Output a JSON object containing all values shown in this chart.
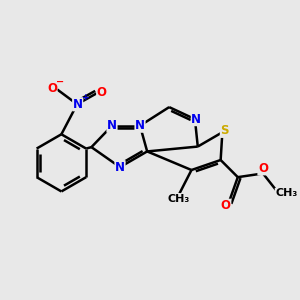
{
  "bg_color": "#e8e8e8",
  "bond_color": "#000000",
  "bond_width": 1.8,
  "atom_colors": {
    "N": "#0000ee",
    "O": "#ff0000",
    "S": "#ccaa00",
    "C": "#000000"
  },
  "font_size": 8.5,
  "fig_size": [
    3.0,
    3.0
  ],
  "dpi": 100
}
